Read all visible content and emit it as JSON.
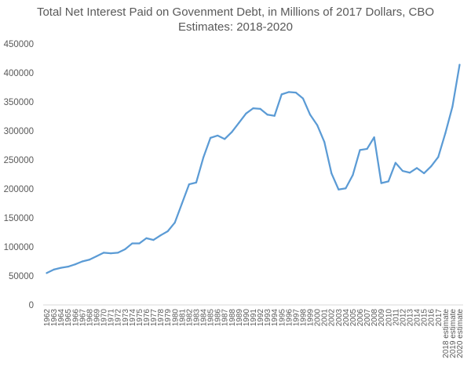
{
  "chart_data": {
    "type": "line",
    "title_lines": [
      "Total Net Interest Paid on Govenment Debt, in Millions of 2017 Dollars, CBO",
      "Estimates: 2018-2020"
    ],
    "xlabel": "",
    "ylabel": "",
    "ylim": [
      0,
      450000
    ],
    "y_ticks": [
      "0",
      "50000",
      "100000",
      "150000",
      "200000",
      "250000",
      "300000",
      "350000",
      "400000",
      "450000"
    ],
    "grid": false,
    "legend": "none",
    "line_color": "#5b9bd5",
    "categories": [
      "1962",
      "1963",
      "1964",
      "1965",
      "1966",
      "1967",
      "1968",
      "1969",
      "1970",
      "1971",
      "1972",
      "1973",
      "1974",
      "1975",
      "1976",
      "1977",
      "1978",
      "1979",
      "1980",
      "1981",
      "1982",
      "1983",
      "1984",
      "1985",
      "1986",
      "1987",
      "1988",
      "1989",
      "1990",
      "1991",
      "1992",
      "1993",
      "1994",
      "1995",
      "1996",
      "1997",
      "1998",
      "1999",
      "2000",
      "2001",
      "2002",
      "2003",
      "2004",
      "2005",
      "2006",
      "2007",
      "2008",
      "2009",
      "2010",
      "2011",
      "2012",
      "2013",
      "2014",
      "2015",
      "2016",
      "2017",
      "2018 estimate",
      "2019 estimate",
      "2020 estimate"
    ],
    "values": [
      55000,
      61000,
      64000,
      66000,
      70000,
      75000,
      78000,
      84000,
      90000,
      89000,
      90000,
      96000,
      106000,
      106000,
      115000,
      112000,
      120000,
      127000,
      142000,
      175000,
      208000,
      211000,
      254000,
      288000,
      292000,
      286000,
      298000,
      314000,
      330000,
      339000,
      338000,
      328000,
      326000,
      363000,
      367000,
      366000,
      356000,
      328000,
      310000,
      281000,
      227000,
      199000,
      201000,
      224000,
      267000,
      269000,
      289000,
      210000,
      213000,
      245000,
      231000,
      228000,
      236000,
      227000,
      239000,
      255000,
      296000,
      342000,
      414000
    ]
  }
}
